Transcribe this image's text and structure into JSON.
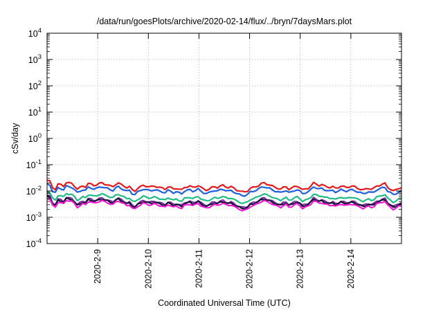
{
  "chart_data": {
    "type": "line",
    "title": "/data/run/goesPlots/archive/2020-02-14/flux/../bryn/7daysMars.plot",
    "xlabel": "Coordinated Universal Time (UTC)",
    "ylabel": "cSv/day",
    "yscale": "log",
    "ylim": [
      0.0001,
      10000
    ],
    "xlim": [
      0,
      7
    ],
    "grid": true,
    "y_ticks": [
      {
        "base": "10",
        "exp": "4",
        "value": 10000
      },
      {
        "base": "10",
        "exp": "3",
        "value": 1000
      },
      {
        "base": "10",
        "exp": "2",
        "value": 100
      },
      {
        "base": "10",
        "exp": "1",
        "value": 10
      },
      {
        "base": "10",
        "exp": "0",
        "value": 1
      },
      {
        "base": "10",
        "exp": "-1",
        "value": 0.1
      },
      {
        "base": "10",
        "exp": "-2",
        "value": 0.01
      },
      {
        "base": "10",
        "exp": "-3",
        "value": 0.001
      },
      {
        "base": "10",
        "exp": "-4",
        "value": 0.0001
      }
    ],
    "x_ticks": [
      {
        "label": "2020-2-9",
        "x": 1
      },
      {
        "label": "2020-2-10",
        "x": 2
      },
      {
        "label": "2020-2-11",
        "x": 3
      },
      {
        "label": "2020-2-12",
        "x": 4
      },
      {
        "label": "2020-2-13",
        "x": 5
      },
      {
        "label": "2020-2-14",
        "x": 6
      }
    ],
    "series": [
      {
        "color": "#e41a1c",
        "base": 0.0145,
        "amp": 0.25
      },
      {
        "color": "#1f5fe0",
        "base": 0.0105,
        "amp": 0.25
      },
      {
        "color": "#22bb88",
        "base": 0.0055,
        "amp": 0.28
      },
      {
        "color": "#7a2c9e",
        "base": 0.0038,
        "amp": 0.32
      },
      {
        "color": "#111133",
        "base": 0.0035,
        "amp": 0.32
      },
      {
        "color": "#f01ad0",
        "base": 0.003,
        "amp": 0.35
      }
    ],
    "profile": [
      1.55,
      1.45,
      0.95,
      0.85,
      1.2,
      1.15,
      1.05,
      1.35,
      1.3,
      1.25,
      1.05,
      0.85,
      0.95,
      1.05,
      1.0,
      1.25,
      1.2,
      1.1,
      1.15,
      1.25,
      1.3,
      1.2,
      1.15,
      1.05,
      1.0,
      1.2,
      1.3,
      1.15,
      1.05,
      0.95,
      1.0,
      0.8,
      0.75,
      0.9,
      1.0,
      1.1,
      1.05,
      1.0,
      1.0,
      1.05,
      1.0,
      0.95,
      0.9,
      0.85,
      1.0,
      0.95,
      0.85,
      0.9,
      0.85,
      0.8,
      0.95,
      1.0,
      1.05,
      0.95,
      1.0,
      1.1,
      0.95,
      0.85,
      0.8,
      0.85,
      0.95,
      1.0,
      0.95,
      1.05,
      1.1,
      1.0,
      0.95,
      1.0,
      0.9,
      0.8,
      0.75,
      0.7,
      0.7,
      0.75,
      0.9,
      0.95,
      1.0,
      1.1,
      1.25,
      1.3,
      1.2,
      1.15,
      1.05,
      0.95,
      0.9,
      0.85,
      0.95,
      1.0,
      0.85,
      0.9,
      1.0,
      1.05,
      0.95,
      0.8,
      0.85,
      0.9,
      1.05,
      1.3,
      1.2,
      1.1,
      1.15,
      1.05,
      1.0,
      0.95,
      1.0,
      0.9,
      0.95,
      1.05,
      1.0,
      0.95,
      1.0,
      1.05,
      1.0,
      0.9,
      0.85,
      0.8,
      0.85,
      0.9,
      0.85,
      0.9,
      1.05,
      1.1,
      1.2,
      1.25,
      0.95,
      0.85,
      0.75,
      0.8,
      0.9,
      0.95
    ]
  }
}
